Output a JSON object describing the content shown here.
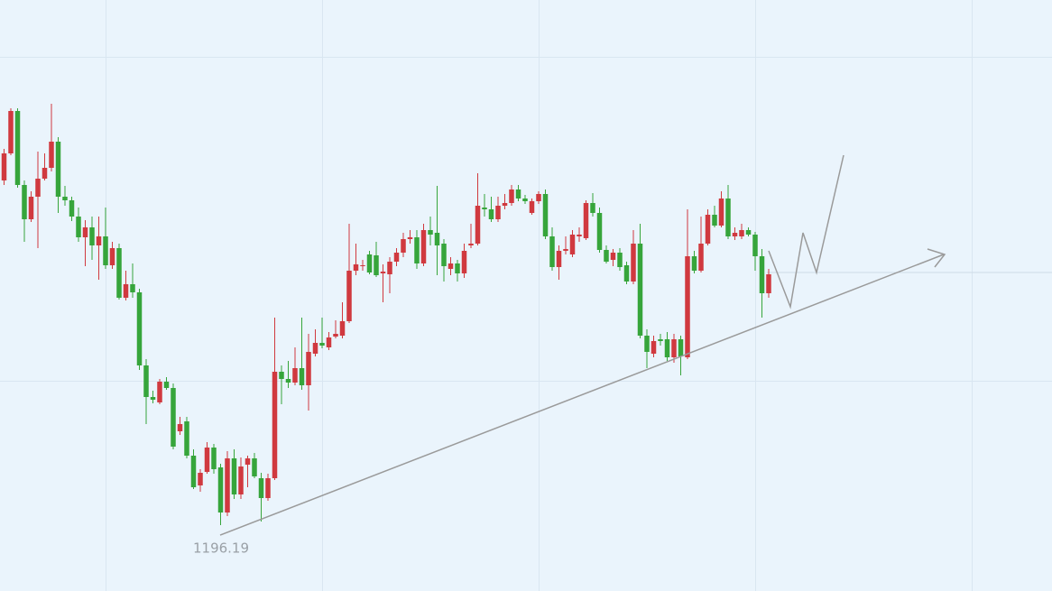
{
  "chart_data": {
    "type": "candlestick",
    "open": [
      1235.5,
      1238.5,
      1243.2,
      1235,
      1231.2,
      1233.7,
      1235.7,
      1236.9,
      1239.8,
      1233.7,
      1233.3,
      1231.5,
      1229.2,
      1230.3,
      1228.3,
      1229.3,
      1226.1,
      1228,
      1222.5,
      1224,
      1223.1,
      1215,
      1211.5,
      1210.9,
      1213.2,
      1212.5,
      1207.7,
      1208.8,
      1205,
      1201.7,
      1203.2,
      1205.9,
      1203.7,
      1198.7,
      1204.7,
      1200.7,
      1204,
      1204.7,
      1202.5,
      1200.3,
      1202.5,
      1214.3,
      1213.5,
      1213.1,
      1214.7,
      1212.8,
      1216.3,
      1217.5,
      1217,
      1218.2,
      1218.3,
      1219.9,
      1225.5,
      1226,
      1227.3,
      1227.2,
      1225.2,
      1225.1,
      1226.5,
      1227.5,
      1229,
      1229.2,
      1226.3,
      1230,
      1229.7,
      1228.5,
      1225.7,
      1226.3,
      1225.2,
      1228.3,
      1228.5,
      1232.5,
      1232.3,
      1231.2,
      1232.7,
      1233,
      1234.5,
      1233.5,
      1231.9,
      1233.2,
      1234,
      1229.3,
      1225.9,
      1227.7,
      1227.3,
      1229.3,
      1229.1,
      1233,
      1231.9,
      1227.8,
      1226.7,
      1227.5,
      1226.1,
      1224.3,
      1228.5,
      1218.3,
      1216.3,
      1217.9,
      1217.9,
      1215.9,
      1217.9,
      1215.9,
      1227.1,
      1225.5,
      1228.5,
      1231.7,
      1230.5,
      1233.5,
      1229.3,
      1229.3,
      1230,
      1229.5,
      1227.1,
      1223
    ],
    "high": [
      1239,
      1243.5,
      1243.5,
      1235.5,
      1234.3,
      1238.7,
      1238.5,
      1244,
      1240.3,
      1234.9,
      1233.7,
      1232.5,
      1231.1,
      1231.5,
      1231.5,
      1232.5,
      1228.7,
      1228.5,
      1225.5,
      1226.3,
      1223.5,
      1215.7,
      1212.2,
      1213.5,
      1213.7,
      1213,
      1209.3,
      1209.3,
      1205.7,
      1203.5,
      1206.5,
      1206.3,
      1204.1,
      1205.5,
      1205.7,
      1204.8,
      1205,
      1205.3,
      1203.1,
      1203,
      1220.3,
      1215,
      1215.5,
      1217,
      1220.3,
      1218.5,
      1219,
      1220.3,
      1218.7,
      1220,
      1222,
      1230.7,
      1228.5,
      1226.7,
      1227.7,
      1228.7,
      1226.2,
      1227,
      1228,
      1229.7,
      1230,
      1230,
      1230.7,
      1231.5,
      1234.9,
      1229,
      1227,
      1226.7,
      1228.5,
      1230.7,
      1236.3,
      1234,
      1233.7,
      1233.7,
      1234,
      1235,
      1235,
      1233.9,
      1233.5,
      1234.3,
      1234.5,
      1230.3,
      1228.3,
      1229.3,
      1230,
      1230.3,
      1233.3,
      1234.1,
      1232.5,
      1228.3,
      1227.9,
      1228,
      1226.5,
      1230,
      1230.7,
      1219,
      1218.3,
      1218.5,
      1218.7,
      1218.5,
      1218.3,
      1232.3,
      1227.7,
      1231.5,
      1232.3,
      1232.7,
      1234.3,
      1235,
      1230.3,
      1230.7,
      1230.3,
      1229.8,
      1227.9,
      1225.7
    ],
    "low": [
      1235,
      1238.3,
      1234.7,
      1228.7,
      1230.9,
      1228,
      1235.5,
      1236.5,
      1231.9,
      1232.7,
      1231,
      1228.7,
      1226,
      1226.7,
      1224.5,
      1225.7,
      1225.7,
      1222.3,
      1222.2,
      1222.5,
      1214.5,
      1208.5,
      1210.8,
      1210.7,
      1212.3,
      1205.7,
      1207.3,
      1204.7,
      1201.3,
      1201,
      1203,
      1203,
      1197.3,
      1198.3,
      1200.2,
      1200.2,
      1201.5,
      1202.5,
      1197.7,
      1200,
      1202.3,
      1210.7,
      1212.5,
      1212.8,
      1212.3,
      1210,
      1216,
      1216.9,
      1216.7,
      1218,
      1218,
      1219.7,
      1225,
      1225.5,
      1225.1,
      1224.8,
      1222,
      1223,
      1226,
      1227,
      1228.5,
      1225.7,
      1226,
      1228.3,
      1225,
      1224.3,
      1225,
      1224.3,
      1224.7,
      1228,
      1228.3,
      1231.5,
      1230.9,
      1230.9,
      1232.3,
      1232.7,
      1233.2,
      1232.9,
      1231.7,
      1232.9,
      1229,
      1225.5,
      1224.5,
      1227.3,
      1227,
      1228.7,
      1228.9,
      1231.5,
      1227.5,
      1226.3,
      1226,
      1225.5,
      1224,
      1224,
      1218,
      1214.7,
      1215.9,
      1217.2,
      1215.5,
      1215.3,
      1213.9,
      1215.7,
      1225.2,
      1225.3,
      1228.3,
      1230.3,
      1230.3,
      1229,
      1228.9,
      1229,
      1229.3,
      1225.5,
      1220.3,
      1222.5
    ],
    "close": [
      1238.5,
      1243.2,
      1235,
      1231.2,
      1233.7,
      1235.7,
      1236.9,
      1239.8,
      1233.7,
      1233.3,
      1231.5,
      1229.2,
      1230.3,
      1228.3,
      1229.3,
      1226.1,
      1228,
      1222.5,
      1224,
      1223.1,
      1215,
      1211.5,
      1211.2,
      1213.2,
      1212.5,
      1206,
      1208.5,
      1205,
      1201.5,
      1203.1,
      1205.9,
      1203.5,
      1198.7,
      1204.7,
      1200.7,
      1203.8,
      1204.7,
      1202.7,
      1200.3,
      1202.5,
      1214.3,
      1213.5,
      1213.1,
      1214.7,
      1212.8,
      1216.5,
      1217.5,
      1217.2,
      1218.1,
      1218.5,
      1219.9,
      1225.5,
      1226.2,
      1226.1,
      1225.3,
      1225,
      1225.4,
      1226.5,
      1227.5,
      1229,
      1229.2,
      1226.3,
      1230,
      1229.5,
      1228.3,
      1226,
      1226.3,
      1225.2,
      1227.7,
      1228.5,
      1232.7,
      1232.3,
      1231.2,
      1232.7,
      1233,
      1234.5,
      1233.5,
      1233.2,
      1233.2,
      1234,
      1229.3,
      1225.9,
      1227.7,
      1227.9,
      1229.5,
      1229.5,
      1233,
      1231.9,
      1227.8,
      1226.5,
      1227.5,
      1225.9,
      1224.3,
      1228.5,
      1218.3,
      1216.5,
      1217.7,
      1217.7,
      1215.9,
      1217.9,
      1216,
      1227.1,
      1225.5,
      1228.5,
      1231.7,
      1230.5,
      1233.5,
      1229.3,
      1229.7,
      1230,
      1229.5,
      1227.1,
      1223,
      1225.1
    ],
    "up_color": "#d0393f",
    "down_color": "#36a53b",
    "ylim": [
      1190,
      1255.5
    ],
    "support_low": 1196.19
  }
}
